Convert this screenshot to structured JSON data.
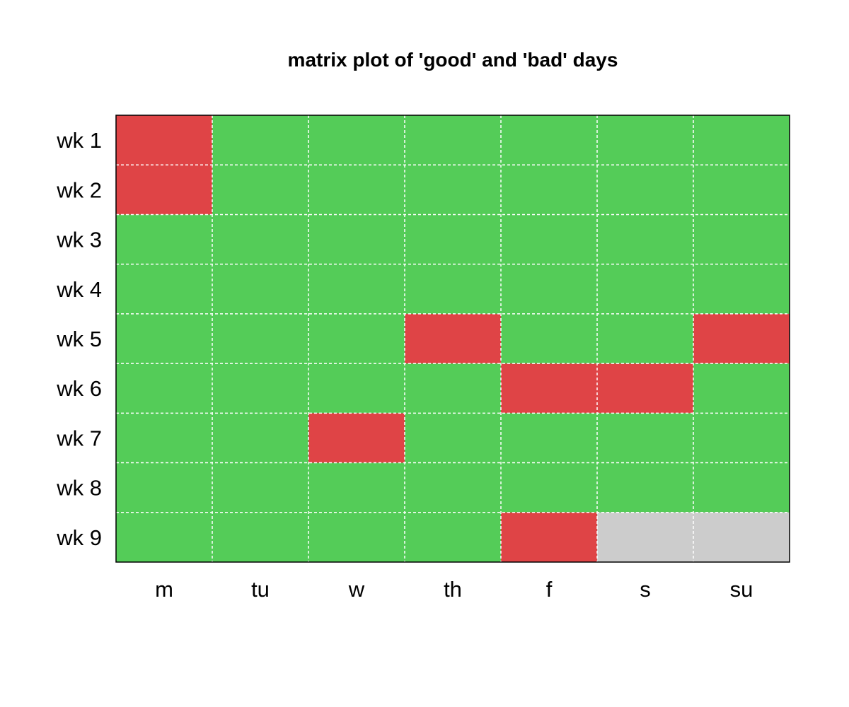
{
  "chart_data": {
    "type": "heatmap",
    "title": "matrix plot of 'good' and 'bad' days",
    "xlabel": "",
    "ylabel": "",
    "x_categories": [
      "m",
      "tu",
      "w",
      "th",
      "f",
      "s",
      "su"
    ],
    "y_categories": [
      "wk 1",
      "wk 2",
      "wk 3",
      "wk 4",
      "wk 5",
      "wk 6",
      "wk 7",
      "wk 8",
      "wk 9"
    ],
    "values": [
      [
        "bad",
        "good",
        "good",
        "good",
        "good",
        "good",
        "good"
      ],
      [
        "bad",
        "good",
        "good",
        "good",
        "good",
        "good",
        "good"
      ],
      [
        "good",
        "good",
        "good",
        "good",
        "good",
        "good",
        "good"
      ],
      [
        "good",
        "good",
        "good",
        "good",
        "good",
        "good",
        "good"
      ],
      [
        "good",
        "good",
        "good",
        "bad",
        "good",
        "good",
        "bad"
      ],
      [
        "good",
        "good",
        "good",
        "good",
        "bad",
        "bad",
        "good"
      ],
      [
        "good",
        "good",
        "bad",
        "good",
        "good",
        "good",
        "good"
      ],
      [
        "good",
        "good",
        "good",
        "good",
        "good",
        "good",
        "good"
      ],
      [
        "good",
        "good",
        "good",
        "good",
        "bad",
        null,
        null
      ]
    ],
    "colors": {
      "good": "#54cc58",
      "bad": "#df4446",
      "missing": "#cccccc",
      "grid": "#ffffff",
      "frame": "#000000"
    },
    "grid": true,
    "legend": "none"
  }
}
